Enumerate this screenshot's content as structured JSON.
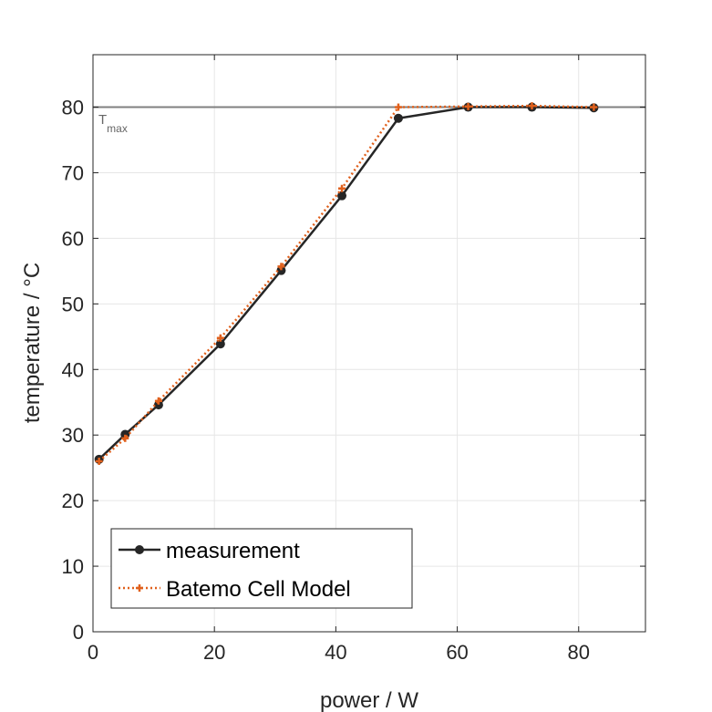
{
  "chart_data": {
    "type": "line",
    "xlabel": "power / W",
    "ylabel": "temperature / °C",
    "xlim": [
      0,
      91
    ],
    "ylim": [
      0,
      88
    ],
    "xticks": [
      0,
      20,
      40,
      60,
      80
    ],
    "yticks": [
      0,
      10,
      20,
      30,
      40,
      50,
      60,
      70,
      80
    ],
    "grid": true,
    "legend_position": "bottom-left",
    "reference_line": {
      "y": 80,
      "label_main": "T",
      "label_sub": "max",
      "color": "#808080"
    },
    "series": [
      {
        "name": "measurement",
        "color": "#262626",
        "style": "solid",
        "marker": "circle",
        "x": [
          1,
          5.3,
          10.8,
          21,
          31,
          41,
          50.3,
          61.8,
          72.3,
          82.5
        ],
        "y": [
          26.3,
          30.1,
          34.6,
          43.9,
          55.1,
          66.5,
          78.3,
          80.0,
          80.0,
          79.9
        ]
      },
      {
        "name": "Batemo Cell Model",
        "color": "#e0601c",
        "style": "dotted",
        "marker": "plus",
        "x": [
          1,
          5.3,
          10.8,
          21,
          31,
          41,
          50.3,
          61.8,
          72.3,
          82.5
        ],
        "y": [
          26.0,
          29.5,
          35.2,
          44.8,
          55.7,
          67.6,
          80.0,
          80.1,
          80.2,
          80.0
        ]
      }
    ]
  }
}
